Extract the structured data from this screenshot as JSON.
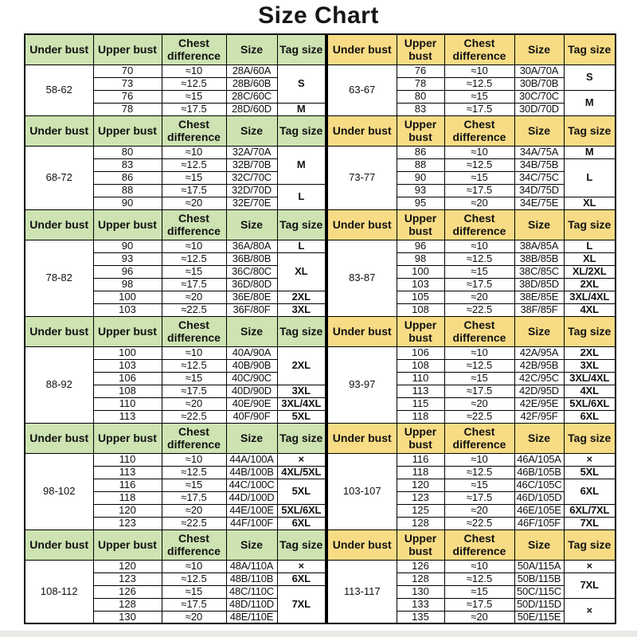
{
  "title": "Size Chart",
  "colors": {
    "left_header_bg": "#cde3b2",
    "right_header_bg": "#f8dc85",
    "border": "#000000",
    "text": "#111111"
  },
  "chart_data": {
    "type": "table",
    "title": "Size Chart",
    "columns": [
      "Under bust",
      "Upper bust",
      "Chest difference",
      "Size",
      "Tag size"
    ],
    "tables": [
      {
        "side": "left",
        "sections": [
          {
            "range": "58-62",
            "rows": [
              {
                "upper": "70",
                "diff": "≈10",
                "size": "28A/60A"
              },
              {
                "upper": "73",
                "diff": "≈12.5",
                "size": "28B/60B"
              },
              {
                "upper": "76",
                "diff": "≈15",
                "size": "28C/60C"
              },
              {
                "upper": "78",
                "diff": "≈17.5",
                "size": "28D/60D"
              }
            ],
            "tags": [
              {
                "label": "S",
                "start": 1,
                "span": 3
              },
              {
                "label": "M",
                "start": 4,
                "span": 1
              }
            ]
          },
          {
            "range": "68-72",
            "rows": [
              {
                "upper": "80",
                "diff": "≈10",
                "size": "32A/70A"
              },
              {
                "upper": "83",
                "diff": "≈12.5",
                "size": "32B/70B"
              },
              {
                "upper": "86",
                "diff": "≈15",
                "size": "32C/70C"
              },
              {
                "upper": "88",
                "diff": "≈17.5",
                "size": "32D/70D"
              },
              {
                "upper": "90",
                "diff": "≈20",
                "size": "32E/70E"
              }
            ],
            "tags": [
              {
                "label": "M",
                "start": 1,
                "span": 3
              },
              {
                "label": "L",
                "start": 4,
                "span": 2
              }
            ]
          },
          {
            "range": "78-82",
            "rows": [
              {
                "upper": "90",
                "diff": "≈10",
                "size": "36A/80A"
              },
              {
                "upper": "93",
                "diff": "≈12.5",
                "size": "36B/80B"
              },
              {
                "upper": "96",
                "diff": "≈15",
                "size": "36C/80C"
              },
              {
                "upper": "98",
                "diff": "≈17.5",
                "size": "36D/80D"
              },
              {
                "upper": "100",
                "diff": "≈20",
                "size": "36E/80E"
              },
              {
                "upper": "103",
                "diff": "≈22.5",
                "size": "36F/80F"
              }
            ],
            "tags": [
              {
                "label": "L",
                "start": 1,
                "span": 1
              },
              {
                "label": "XL",
                "start": 2,
                "span": 3
              },
              {
                "label": "2XL",
                "start": 5,
                "span": 1
              },
              {
                "label": "3XL",
                "start": 6,
                "span": 1
              }
            ]
          },
          {
            "range": "88-92",
            "rows": [
              {
                "upper": "100",
                "diff": "≈10",
                "size": "40A/90A"
              },
              {
                "upper": "103",
                "diff": "≈12.5",
                "size": "40B/90B"
              },
              {
                "upper": "106",
                "diff": "≈15",
                "size": "40C/90C"
              },
              {
                "upper": "108",
                "diff": "≈17.5",
                "size": "40D/90D"
              },
              {
                "upper": "110",
                "diff": "≈20",
                "size": "40E/90E"
              },
              {
                "upper": "113",
                "diff": "≈22.5",
                "size": "40F/90F"
              }
            ],
            "tags": [
              {
                "label": "2XL",
                "start": 1,
                "span": 3
              },
              {
                "label": "3XL",
                "start": 4,
                "span": 1
              },
              {
                "label": "3XL/4XL",
                "start": 5,
                "span": 1
              },
              {
                "label": "5XL",
                "start": 6,
                "span": 1
              }
            ]
          },
          {
            "range": "98-102",
            "rows": [
              {
                "upper": "110",
                "diff": "≈10",
                "size": "44A/100A"
              },
              {
                "upper": "113",
                "diff": "≈12.5",
                "size": "44B/100B"
              },
              {
                "upper": "116",
                "diff": "≈15",
                "size": "44C/100C"
              },
              {
                "upper": "118",
                "diff": "≈17.5",
                "size": "44D/100D"
              },
              {
                "upper": "120",
                "diff": "≈20",
                "size": "44E/100E"
              },
              {
                "upper": "123",
                "diff": "≈22.5",
                "size": "44F/100F"
              }
            ],
            "tags": [
              {
                "label": "×",
                "start": 1,
                "span": 1
              },
              {
                "label": "4XL/5XL",
                "start": 2,
                "span": 1
              },
              {
                "label": "5XL",
                "start": 3,
                "span": 2
              },
              {
                "label": "5XL/6XL",
                "start": 5,
                "span": 1
              },
              {
                "label": "6XL",
                "start": 6,
                "span": 1
              }
            ]
          },
          {
            "range": "108-112",
            "rows": [
              {
                "upper": "120",
                "diff": "≈10",
                "size": "48A/110A"
              },
              {
                "upper": "123",
                "diff": "≈12.5",
                "size": "48B/110B"
              },
              {
                "upper": "126",
                "diff": "≈15",
                "size": "48C/110C"
              },
              {
                "upper": "128",
                "diff": "≈17.5",
                "size": "48D/110D"
              },
              {
                "upper": "130",
                "diff": "≈20",
                "size": "48E/110E"
              }
            ],
            "tags": [
              {
                "label": "×",
                "start": 1,
                "span": 1
              },
              {
                "label": "6XL",
                "start": 2,
                "span": 1
              },
              {
                "label": "7XL",
                "start": 3,
                "span": 3
              }
            ]
          }
        ]
      },
      {
        "side": "right",
        "sections": [
          {
            "range": "63-67",
            "rows": [
              {
                "upper": "76",
                "diff": "≈10",
                "size": "30A/70A"
              },
              {
                "upper": "78",
                "diff": "≈12.5",
                "size": "30B/70B"
              },
              {
                "upper": "80",
                "diff": "≈15",
                "size": "30C/70C"
              },
              {
                "upper": "83",
                "diff": "≈17.5",
                "size": "30D/70D"
              }
            ],
            "tags": [
              {
                "label": "S",
                "start": 1,
                "span": 2
              },
              {
                "label": "M",
                "start": 3,
                "span": 2
              }
            ]
          },
          {
            "range": "73-77",
            "rows": [
              {
                "upper": "86",
                "diff": "≈10",
                "size": "34A/75A"
              },
              {
                "upper": "88",
                "diff": "≈12.5",
                "size": "34B/75B"
              },
              {
                "upper": "90",
                "diff": "≈15",
                "size": "34C/75C"
              },
              {
                "upper": "93",
                "diff": "≈17.5",
                "size": "34D/75D"
              },
              {
                "upper": "95",
                "diff": "≈20",
                "size": "34E/75E"
              }
            ],
            "tags": [
              {
                "label": "M",
                "start": 1,
                "span": 1
              },
              {
                "label": "L",
                "start": 2,
                "span": 3
              },
              {
                "label": "XL",
                "start": 5,
                "span": 1
              }
            ]
          },
          {
            "range": "83-87",
            "rows": [
              {
                "upper": "96",
                "diff": "≈10",
                "size": "38A/85A"
              },
              {
                "upper": "98",
                "diff": "≈12.5",
                "size": "38B/85B"
              },
              {
                "upper": "100",
                "diff": "≈15",
                "size": "38C/85C"
              },
              {
                "upper": "103",
                "diff": "≈17.5",
                "size": "38D/85D"
              },
              {
                "upper": "105",
                "diff": "≈20",
                "size": "38E/85E"
              },
              {
                "upper": "108",
                "diff": "≈22.5",
                "size": "38F/85F"
              }
            ],
            "tags": [
              {
                "label": "L",
                "start": 1,
                "span": 1
              },
              {
                "label": "XL",
                "start": 2,
                "span": 1
              },
              {
                "label": "XL/2XL",
                "start": 3,
                "span": 1
              },
              {
                "label": "2XL",
                "start": 4,
                "span": 1
              },
              {
                "label": "3XL/4XL",
                "start": 5,
                "span": 1
              },
              {
                "label": "4XL",
                "start": 6,
                "span": 1
              }
            ]
          },
          {
            "range": "93-97",
            "rows": [
              {
                "upper": "106",
                "diff": "≈10",
                "size": "42A/95A"
              },
              {
                "upper": "108",
                "diff": "≈12.5",
                "size": "42B/95B"
              },
              {
                "upper": "110",
                "diff": "≈15",
                "size": "42C/95C"
              },
              {
                "upper": "113",
                "diff": "≈17.5",
                "size": "42D/95D"
              },
              {
                "upper": "115",
                "diff": "≈20",
                "size": "42E/95E"
              },
              {
                "upper": "118",
                "diff": "≈22.5",
                "size": "42F/95F"
              }
            ],
            "tags": [
              {
                "label": "2XL",
                "start": 1,
                "span": 1
              },
              {
                "label": "3XL",
                "start": 2,
                "span": 1
              },
              {
                "label": "3XL/4XL",
                "start": 3,
                "span": 1
              },
              {
                "label": "4XL",
                "start": 4,
                "span": 1
              },
              {
                "label": "5XL/6XL",
                "start": 5,
                "span": 1
              },
              {
                "label": "6XL",
                "start": 6,
                "span": 1
              }
            ]
          },
          {
            "range": "103-107",
            "rows": [
              {
                "upper": "116",
                "diff": "≈10",
                "size": "46A/105A"
              },
              {
                "upper": "118",
                "diff": "≈12.5",
                "size": "46B/105B"
              },
              {
                "upper": "120",
                "diff": "≈15",
                "size": "46C/105C"
              },
              {
                "upper": "123",
                "diff": "≈17.5",
                "size": "46D/105D"
              },
              {
                "upper": "125",
                "diff": "≈20",
                "size": "46E/105E"
              },
              {
                "upper": "128",
                "diff": "≈22.5",
                "size": "46F/105F"
              }
            ],
            "tags": [
              {
                "label": "×",
                "start": 1,
                "span": 1
              },
              {
                "label": "5XL",
                "start": 2,
                "span": 1
              },
              {
                "label": "6XL",
                "start": 3,
                "span": 2
              },
              {
                "label": "6XL/7XL",
                "start": 5,
                "span": 1
              },
              {
                "label": "7XL",
                "start": 6,
                "span": 1
              }
            ]
          },
          {
            "range": "113-117",
            "rows": [
              {
                "upper": "126",
                "diff": "≈10",
                "size": "50A/115A"
              },
              {
                "upper": "128",
                "diff": "≈12.5",
                "size": "50B/115B"
              },
              {
                "upper": "130",
                "diff": "≈15",
                "size": "50C/115C"
              },
              {
                "upper": "133",
                "diff": "≈17.5",
                "size": "50D/115D"
              },
              {
                "upper": "135",
                "diff": "≈20",
                "size": "50E/115E"
              }
            ],
            "tags": [
              {
                "label": "×",
                "start": 1,
                "span": 1
              },
              {
                "label": "7XL",
                "start": 2,
                "span": 2
              },
              {
                "label": "×",
                "start": 4,
                "span": 2
              }
            ]
          }
        ]
      }
    ]
  }
}
